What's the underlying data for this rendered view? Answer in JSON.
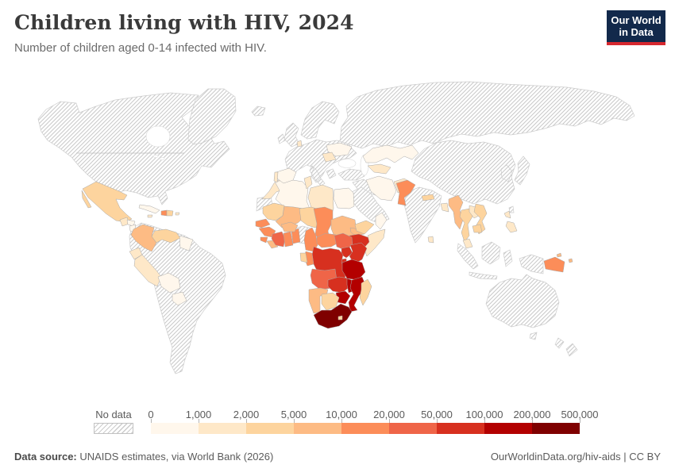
{
  "header": {
    "title": "Children living with HIV, 2024",
    "subtitle": "Number of children aged 0-14 infected with HIV.",
    "logo": {
      "line1": "Our World",
      "line2": "in Data",
      "bg_color": "#12294B",
      "accent_color": "#D7282F"
    }
  },
  "legend": {
    "no_data_label": "No data",
    "tick_labels": [
      "0",
      "1,000",
      "2,000",
      "5,000",
      "10,000",
      "20,000",
      "50,000",
      "100,000",
      "200,000",
      "500,000"
    ]
  },
  "footer": {
    "source_label": "Data source:",
    "source_text": " UNAIDS estimates, via World Bank (2026)",
    "right_text": "OurWorldinData.org/hiv-aids | CC BY"
  },
  "chart_data": {
    "type": "heatmap",
    "subtype": "world-choropleth",
    "title": "Children living with HIV, 2024",
    "unit": "children aged 0-14 living with HIV",
    "no_data_style": "diagonal-hatch",
    "bin_edges": [
      0,
      1000,
      2000,
      5000,
      10000,
      20000,
      50000,
      100000,
      200000,
      500000
    ],
    "palette": [
      "#fff7ec",
      "#fee8c8",
      "#fdd49e",
      "#fdbb84",
      "#fc8d59",
      "#ef6548",
      "#d7301f",
      "#b30000",
      "#7f0000"
    ],
    "regions": {
      "north-america": "no-data",
      "greenland": "no-data",
      "iceland": "no-data",
      "south-america-other": "no-data",
      "europe-other": "no-data",
      "russia": "no-data",
      "china-mongolia": "no-data",
      "korea": "no-data",
      "japan": "no-data",
      "taiwan": "no-data",
      "turkey": "no-data",
      "iraq-syria": "no-data",
      "saudi-arabia": "no-data",
      "india": "no-data",
      "indonesia": "no-data",
      "australia": "no-data",
      "new-zealand": "no-data",
      "western-sahara": "no-data",
      "nigeria": "no-data",
      "mexico": 2,
      "guatemala": 1,
      "honduras": 0,
      "nicaragua": 0,
      "costa-rica": 0,
      "panama": 1,
      "cuba": 0,
      "jamaica": 1,
      "haiti": 4,
      "dominican-republic": 2,
      "puerto-rico": 1,
      "colombia": 3,
      "venezuela": 2,
      "guyana-suriname": 0,
      "ecuador": 1,
      "peru": 1,
      "bolivia": 0,
      "paraguay": 0,
      "morocco": 1,
      "algeria": 0,
      "tunisia": 1,
      "libya": 1,
      "egypt": 0,
      "mauritania": 2,
      "mali": 3,
      "niger": 2,
      "chad": 4,
      "sudan": 3,
      "eritrea": 3,
      "ethiopia": 6,
      "somalia": 1,
      "senegal": 4,
      "guinea": 4,
      "sierra-leone": 4,
      "liberia": 3,
      "cote-divoire": 5,
      "ghana": 4,
      "togo-benin": 4,
      "burkina-faso": 3,
      "cameroon": 4,
      "central-african-republic": 4,
      "south-sudan": 5,
      "uganda": 6,
      "kenya": 6,
      "rwanda-burundi": 6,
      "dr-congo": 6,
      "congo": 4,
      "gabon": 2,
      "angola": 5,
      "zambia": 6,
      "malawi": 7,
      "tanzania": 7,
      "mozambique": 7,
      "zimbabwe": 7,
      "namibia": 3,
      "botswana": 2,
      "south-africa": 8,
      "lesotho": 2,
      "madagascar": 2,
      "spain": 0,
      "portugal": 1,
      "ukraine": 0,
      "romania": 1,
      "denmark": 1,
      "iran": 0,
      "afghanistan": 1,
      "kazakhstan": 0,
      "uzbekistan": 1,
      "yemen": 2,
      "oman": 0,
      "pakistan": 4,
      "nepal": 2,
      "bangladesh": 1,
      "sri-lanka": 1,
      "myanmar": 3,
      "thailand": 2,
      "laos": 1,
      "vietnam": 2,
      "cambodia": 2,
      "malaysia": 1,
      "philippines": 1,
      "papua-new-guinea": 4,
      "solomon-islands": 3
    }
  }
}
